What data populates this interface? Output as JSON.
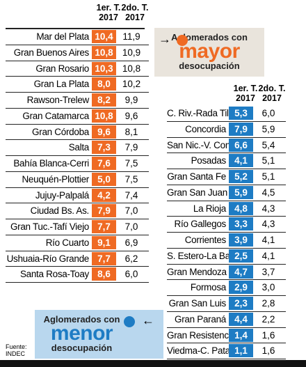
{
  "left_table": {
    "header": [
      "1er. T. 2017",
      "2do. T. 2017"
    ],
    "rows": [
      [
        "Mar del Plata",
        "10,4",
        "11,9"
      ],
      [
        "Gran Buenos Aires",
        "10,8",
        "10,9"
      ],
      [
        "Gran Rosario",
        "10,3",
        "10,8"
      ],
      [
        "Gran La Plata",
        "8,0",
        "10,2"
      ],
      [
        "Rawson-Trelew",
        "8,2",
        "9,9"
      ],
      [
        "Gran Catamarca",
        "10,8",
        "9,6"
      ],
      [
        "Gran Córdoba",
        "9,6",
        "8,1"
      ],
      [
        "Salta",
        "7,3",
        "7,9"
      ],
      [
        "Bahía Blanca-Cerri",
        "7,6",
        "7,5"
      ],
      [
        "Neuquén-Plottier",
        "5,0",
        "7,5"
      ],
      [
        "Jujuy-Palpalá",
        "4,2",
        "7,4"
      ],
      [
        "Ciudad Bs. As.",
        "7,9",
        "7,0"
      ],
      [
        "Gran Tuc.-Tafí Viejo",
        "7,7",
        "7,0"
      ],
      [
        "Río Cuarto",
        "9,1",
        "6,9"
      ],
      [
        "Ushuaia-Río Grande",
        "7,7",
        "6,2"
      ],
      [
        "Santa Rosa-Toay",
        "8,6",
        "6,0"
      ]
    ]
  },
  "right_table": {
    "header": [
      "1er. T. 2017",
      "2do. T. 2017"
    ],
    "rows": [
      [
        "C. Riv.-Rada Tilly",
        "5,3",
        "6,0"
      ],
      [
        "Concordia",
        "7,9",
        "5,9"
      ],
      [
        "San Nic.-V. Const.",
        "6,6",
        "5,4"
      ],
      [
        "Posadas",
        "4,1",
        "5,1"
      ],
      [
        "Gran Santa Fe",
        "5,2",
        "5,1"
      ],
      [
        "Gran San Juan",
        "5,9",
        "4,5"
      ],
      [
        "La Rioja",
        "4,8",
        "4,3"
      ],
      [
        "Río Gallegos",
        "3,3",
        "4,3"
      ],
      [
        "Corrientes",
        "3,9",
        "4,1"
      ],
      [
        "S. Estero-La Banda",
        "2,5",
        "4,1"
      ],
      [
        "Gran Mendoza",
        "4,7",
        "3,7"
      ],
      [
        "Formosa",
        "2,9",
        "3,0"
      ],
      [
        "Gran San Luis",
        "2,3",
        "2,8"
      ],
      [
        "Gran Paraná",
        "4,4",
        "2,2"
      ],
      [
        "Gran Resistencia",
        "1,4",
        "1,6"
      ],
      [
        "Viedma-C. Patag.",
        "1,1",
        "1,6"
      ]
    ]
  },
  "callout_high": {
    "line1": "Aglomerados con",
    "emphasis": "mayor",
    "line2": "desocupación"
  },
  "callout_low": {
    "line1": "Aglomerados con",
    "emphasis": "menor",
    "line2": "desocupación"
  },
  "source": {
    "label": "Fuente:",
    "name": "INDEC"
  }
}
